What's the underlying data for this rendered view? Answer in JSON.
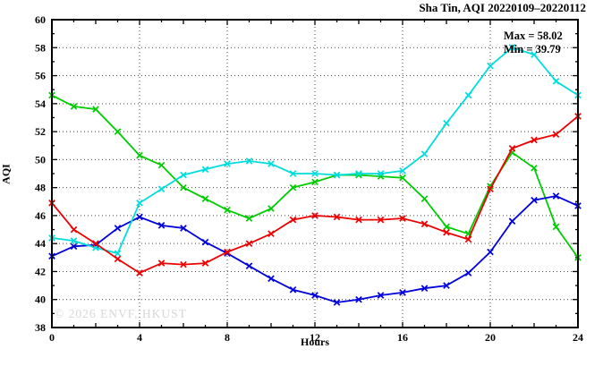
{
  "title": "Sha Tin, AQI 20220109–20220112",
  "annotation": {
    "max_label": "Max = 58.02",
    "min_label": "Min = 39.79"
  },
  "watermark": "© 2026 ENVF, HKUST",
  "chart_data": {
    "type": "line",
    "title": "Sha Tin, AQI 20220109–20220112",
    "xlabel": "Hours",
    "ylabel": "AQI",
    "xlim": [
      0,
      24
    ],
    "ylim": [
      38,
      60
    ],
    "xticks_labeled": [
      0,
      4,
      8,
      12,
      16,
      20,
      24
    ],
    "yticks_labeled": [
      38,
      40,
      42,
      44,
      46,
      48,
      50,
      52,
      54,
      56,
      58,
      60
    ],
    "grid_x": [
      4,
      8,
      12,
      16,
      20
    ],
    "grid_y": [
      40,
      42,
      44,
      46,
      48,
      50,
      52,
      54,
      56,
      58
    ],
    "grid": true,
    "legend": "none",
    "marker": "x-cross",
    "max_value": 58.02,
    "min_value": 39.79,
    "x": [
      0,
      1,
      2,
      3,
      4,
      5,
      6,
      7,
      8,
      9,
      10,
      11,
      12,
      13,
      14,
      15,
      16,
      17,
      18,
      19,
      20,
      21,
      22,
      23,
      24
    ],
    "series": [
      {
        "name": "green-series",
        "color": "#00cc00",
        "values": [
          54.6,
          53.8,
          53.6,
          52.0,
          50.3,
          49.6,
          48.0,
          47.2,
          46.4,
          45.8,
          46.5,
          48.0,
          48.4,
          48.9,
          48.9,
          48.8,
          48.7,
          47.2,
          45.2,
          44.7,
          48.1,
          50.5,
          49.4,
          45.2,
          43.0
        ]
      },
      {
        "name": "blue-series",
        "color": "#0000dd",
        "values": [
          43.1,
          43.8,
          43.9,
          45.1,
          45.9,
          45.3,
          45.1,
          44.1,
          43.3,
          42.4,
          41.5,
          40.7,
          40.3,
          39.79,
          40.0,
          40.3,
          40.5,
          40.8,
          41.0,
          41.9,
          43.4,
          45.6,
          47.1,
          47.4,
          46.7
        ]
      },
      {
        "name": "cyan-series",
        "color": "#00dddd",
        "values": [
          44.4,
          44.2,
          43.7,
          43.3,
          46.9,
          47.9,
          48.9,
          49.3,
          49.7,
          49.9,
          49.7,
          49.0,
          49.0,
          48.9,
          49.0,
          49.0,
          49.2,
          50.4,
          52.6,
          54.6,
          56.7,
          58.02,
          57.5,
          55.6,
          54.6
        ]
      },
      {
        "name": "red-series",
        "color": "#ee0000",
        "values": [
          46.9,
          45.0,
          44.0,
          42.9,
          41.9,
          42.6,
          42.5,
          42.6,
          43.4,
          44.0,
          44.7,
          45.7,
          46.0,
          45.9,
          45.7,
          45.7,
          45.8,
          45.4,
          44.8,
          44.3,
          47.9,
          50.8,
          51.4,
          51.8,
          53.1
        ]
      }
    ],
    "frame_color": "#000000",
    "grid_color": "#444444",
    "background": "#ffffff"
  }
}
